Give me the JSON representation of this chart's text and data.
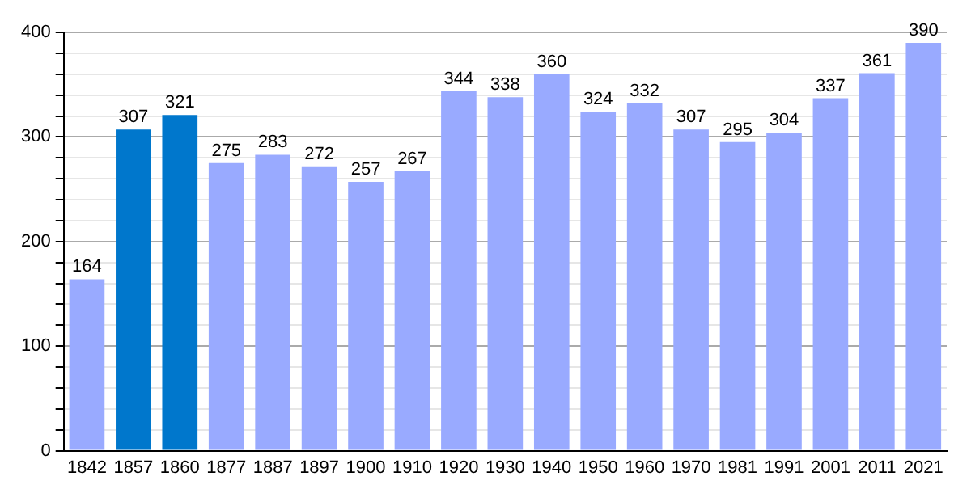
{
  "chart_data": {
    "type": "bar",
    "categories": [
      "1842",
      "1857",
      "1860",
      "1877",
      "1887",
      "1897",
      "1900",
      "1910",
      "1920",
      "1930",
      "1940",
      "1950",
      "1960",
      "1970",
      "1981",
      "1991",
      "2001",
      "2011",
      "2021"
    ],
    "values": [
      164,
      307,
      321,
      275,
      283,
      272,
      257,
      267,
      344,
      338,
      360,
      324,
      332,
      307,
      295,
      304,
      337,
      361,
      390
    ],
    "colors": [
      "#99aaff",
      "#0077cc",
      "#0077cc",
      "#99aaff",
      "#99aaff",
      "#99aaff",
      "#99aaff",
      "#99aaff",
      "#99aaff",
      "#99aaff",
      "#99aaff",
      "#99aaff",
      "#99aaff",
      "#99aaff",
      "#99aaff",
      "#99aaff",
      "#99aaff",
      "#99aaff",
      "#99aaff"
    ],
    "ylim": [
      0,
      400
    ],
    "yticks": [
      0,
      {
        "value": 20,
        "label": null
      },
      {
        "value": 40,
        "label": null
      },
      {
        "value": 60,
        "label": null
      },
      {
        "value": 80,
        "label": null
      },
      100,
      {
        "value": 120,
        "label": null
      },
      {
        "value": 140,
        "label": null
      },
      {
        "value": 160,
        "label": null
      },
      {
        "value": 180,
        "label": null
      },
      200,
      {
        "value": 220,
        "label": null
      },
      {
        "value": 240,
        "label": null
      },
      {
        "value": 260,
        "label": null
      },
      {
        "value": 280,
        "label": null
      },
      300,
      {
        "value": 320,
        "label": null
      },
      {
        "value": 340,
        "label": null
      },
      {
        "value": 360,
        "label": null
      },
      {
        "value": 380,
        "label": null
      },
      400
    ],
    "grid": true,
    "data_labels": true
  }
}
